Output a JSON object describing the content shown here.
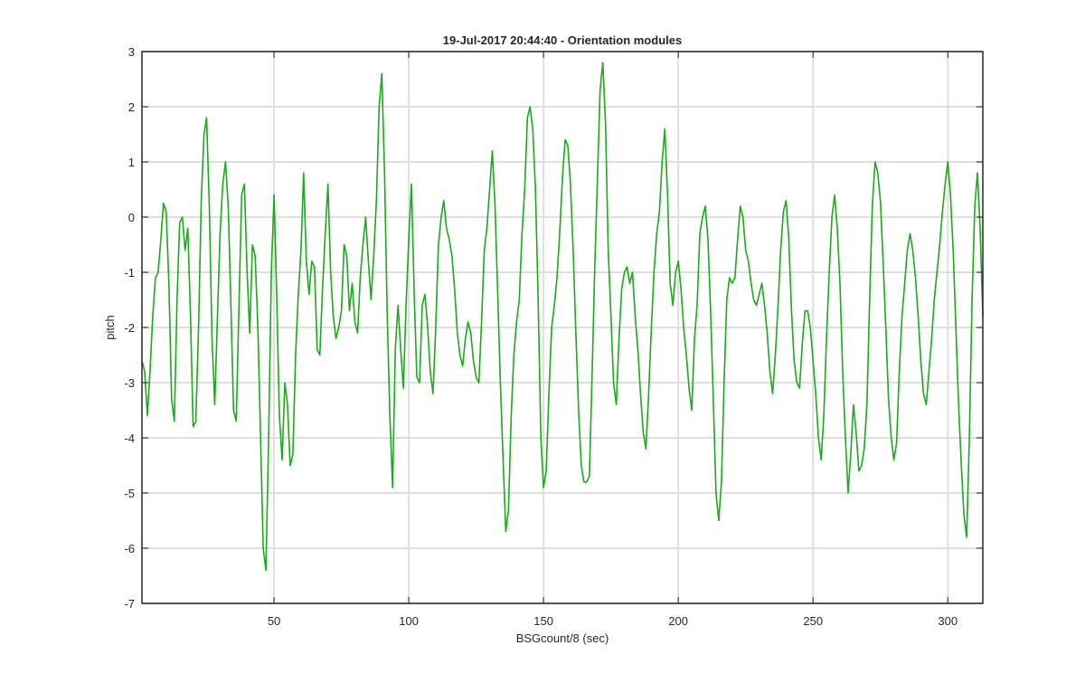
{
  "chart_data": {
    "type": "line",
    "title": "19-Jul-2017 20:44:40 - Orientation modules",
    "xlabel": "BSGcount/8 (sec)",
    "ylabel": "pitch",
    "xlim": [
      1,
      313
    ],
    "ylim": [
      -7,
      3
    ],
    "xticks": [
      50,
      100,
      150,
      200,
      250,
      300
    ],
    "yticks": [
      -7,
      -6,
      -5,
      -4,
      -3,
      -2,
      -1,
      0,
      1,
      2,
      3
    ],
    "grid": true,
    "line_color": "#1aaa1a",
    "series": [
      {
        "x": [
          1,
          2,
          3,
          4,
          5,
          6,
          7,
          8,
          9,
          10,
          11,
          12,
          13,
          14,
          15,
          16,
          17,
          18,
          19,
          20,
          21,
          22,
          23,
          24,
          25,
          26,
          27,
          28,
          29,
          30,
          31,
          32,
          33,
          34,
          35,
          36,
          37,
          38,
          39,
          40,
          41,
          42,
          43,
          44,
          45,
          46,
          47,
          48,
          49,
          50,
          51,
          52,
          53,
          54,
          55,
          56,
          57,
          58,
          59,
          60,
          61,
          62,
          63,
          64,
          65,
          66,
          67,
          68,
          69,
          70,
          71,
          72,
          73,
          74,
          75,
          76,
          77,
          78,
          79,
          80,
          81,
          82,
          83,
          84,
          85,
          86,
          87,
          88,
          89,
          90,
          91,
          92,
          93,
          94,
          95,
          96,
          97,
          98,
          99,
          100,
          101,
          102,
          103,
          104,
          105,
          106,
          107,
          108,
          109,
          110,
          111,
          112,
          113,
          114,
          115,
          116,
          117,
          118,
          119,
          120,
          121,
          122,
          123,
          124,
          125,
          126,
          127,
          128,
          129,
          130,
          131,
          132,
          133,
          134,
          135,
          136,
          137,
          138,
          139,
          140,
          141,
          142,
          143,
          144,
          145,
          146,
          147,
          148,
          149,
          150,
          151,
          152,
          153,
          154,
          155,
          156,
          157,
          158,
          159,
          160,
          161,
          162,
          163,
          164,
          165,
          166,
          167,
          168,
          169,
          170,
          171,
          172,
          173,
          174,
          175,
          176,
          177,
          178,
          179,
          180,
          181,
          182,
          183,
          184,
          185,
          186,
          187,
          188,
          189,
          190,
          191,
          192,
          193,
          194,
          195,
          196,
          197,
          198,
          199,
          200,
          201,
          202,
          203,
          204,
          205,
          206,
          207,
          208,
          209,
          210,
          211,
          212,
          213,
          214,
          215,
          216,
          217,
          218,
          219,
          220,
          221,
          222,
          223,
          224,
          225,
          226,
          227,
          228,
          229,
          230,
          231,
          232,
          233,
          234,
          235,
          236,
          237,
          238,
          239,
          240,
          241,
          242,
          243,
          244,
          245,
          246,
          247,
          248,
          249,
          250,
          251,
          252,
          253,
          254,
          255,
          256,
          257,
          258,
          259,
          260,
          261,
          262,
          263,
          264,
          265,
          266,
          267,
          268,
          269,
          270,
          271,
          272,
          273,
          274,
          275,
          276,
          277,
          278,
          279,
          280,
          281,
          282,
          283,
          284,
          285,
          286,
          287,
          288,
          289,
          290,
          291,
          292,
          293,
          294,
          295,
          296,
          297,
          298,
          299,
          300,
          301,
          302,
          303,
          304,
          305,
          306,
          307,
          308,
          309,
          310,
          311,
          312,
          313
        ],
        "values": [
          -2.6,
          -2.8,
          -3.6,
          -2.8,
          -1.8,
          -1.1,
          -1.0,
          -0.4,
          0.25,
          0.1,
          -1.2,
          -3.3,
          -3.7,
          -1.5,
          -0.1,
          0.0,
          -0.6,
          -0.2,
          -1.8,
          -3.8,
          -3.7,
          -2.0,
          0.3,
          1.5,
          1.8,
          0.2,
          -2.2,
          -3.4,
          -1.8,
          -0.3,
          0.6,
          1.0,
          0.2,
          -1.6,
          -3.5,
          -3.7,
          -1.6,
          0.4,
          0.6,
          -1.0,
          -2.1,
          -0.5,
          -0.7,
          -2.0,
          -4.0,
          -6.0,
          -6.4,
          -4.0,
          -1.0,
          0.4,
          -1.4,
          -3.6,
          -4.4,
          -3.0,
          -3.4,
          -4.5,
          -4.3,
          -2.5,
          -1.4,
          -0.6,
          0.8,
          -0.8,
          -1.4,
          -0.8,
          -0.9,
          -2.4,
          -2.5,
          -1.3,
          -0.3,
          0.6,
          -1.0,
          -1.8,
          -2.2,
          -2.0,
          -1.7,
          -0.5,
          -0.7,
          -1.7,
          -1.2,
          -1.9,
          -2.1,
          -1.1,
          -0.5,
          0.0,
          -0.8,
          -1.5,
          -0.7,
          0.3,
          2.0,
          2.6,
          0.8,
          -1.8,
          -3.6,
          -4.9,
          -2.4,
          -1.6,
          -2.4,
          -3.1,
          -1.6,
          -0.4,
          0.6,
          -1.4,
          -2.9,
          -3.0,
          -1.6,
          -1.4,
          -2.0,
          -2.8,
          -3.2,
          -2.0,
          -0.5,
          0.0,
          0.3,
          -0.2,
          -0.4,
          -0.7,
          -1.3,
          -2.1,
          -2.5,
          -2.7,
          -2.2,
          -1.9,
          -2.1,
          -2.6,
          -2.9,
          -3.0,
          -1.9,
          -0.6,
          -0.2,
          0.5,
          1.2,
          0.2,
          -1.4,
          -3.0,
          -4.4,
          -5.7,
          -5.3,
          -3.6,
          -2.5,
          -1.9,
          -1.5,
          -0.3,
          0.5,
          1.8,
          2.0,
          1.6,
          0.5,
          -1.5,
          -4.0,
          -4.9,
          -4.6,
          -3.2,
          -2.0,
          -1.6,
          -1.1,
          -0.3,
          0.7,
          1.4,
          1.3,
          0.6,
          -0.6,
          -2.1,
          -3.5,
          -4.5,
          -4.8,
          -4.8,
          -4.7,
          -2.9,
          -0.9,
          0.7,
          2.3,
          2.8,
          1.7,
          -0.6,
          -1.8,
          -3.0,
          -3.4,
          -2.2,
          -1.3,
          -1.0,
          -0.9,
          -1.2,
          -1.0,
          -1.8,
          -2.4,
          -3.2,
          -3.9,
          -4.2,
          -3.2,
          -2.0,
          -1.0,
          -0.3,
          0.1,
          1.0,
          1.6,
          0.4,
          -1.2,
          -1.6,
          -1.0,
          -0.8,
          -1.3,
          -2.0,
          -2.5,
          -3.1,
          -3.5,
          -2.2,
          -1.6,
          -0.3,
          0.0,
          0.2,
          -0.4,
          -1.7,
          -3.3,
          -5.0,
          -5.5,
          -4.8,
          -3.0,
          -1.5,
          -1.1,
          -1.2,
          -1.1,
          -0.4,
          0.2,
          0.0,
          -0.6,
          -0.8,
          -1.2,
          -1.5,
          -1.6,
          -1.4,
          -1.2,
          -1.6,
          -2.1,
          -2.8,
          -3.2,
          -2.5,
          -1.6,
          -0.6,
          0.1,
          0.3,
          -0.4,
          -1.7,
          -2.6,
          -3.0,
          -3.1,
          -2.3,
          -1.7,
          -1.7,
          -2.0,
          -2.6,
          -3.2,
          -4.0,
          -4.4,
          -3.6,
          -2.2,
          -1.0,
          0.0,
          0.4,
          -0.2,
          -1.2,
          -2.8,
          -4.0,
          -5.0,
          -4.3,
          -3.4,
          -3.9,
          -4.6,
          -4.5,
          -4.2,
          -3.4,
          -1.5,
          0.2,
          1.0,
          0.8,
          0.3,
          -0.8,
          -2.0,
          -3.3,
          -4.0,
          -4.4,
          -4.1,
          -2.8,
          -1.8,
          -1.2,
          -0.6,
          -0.3,
          -0.6,
          -1.1,
          -1.8,
          -2.6,
          -3.2,
          -3.4,
          -2.8,
          -2.2,
          -1.5,
          -1.0,
          -0.5,
          0.1,
          0.6,
          1.0,
          0.4,
          -0.6,
          -2.0,
          -3.4,
          -4.5,
          -5.4,
          -5.8,
          -4.0,
          -1.5,
          0.2,
          0.8,
          -0.2,
          -1.8
        ]
      }
    ]
  }
}
